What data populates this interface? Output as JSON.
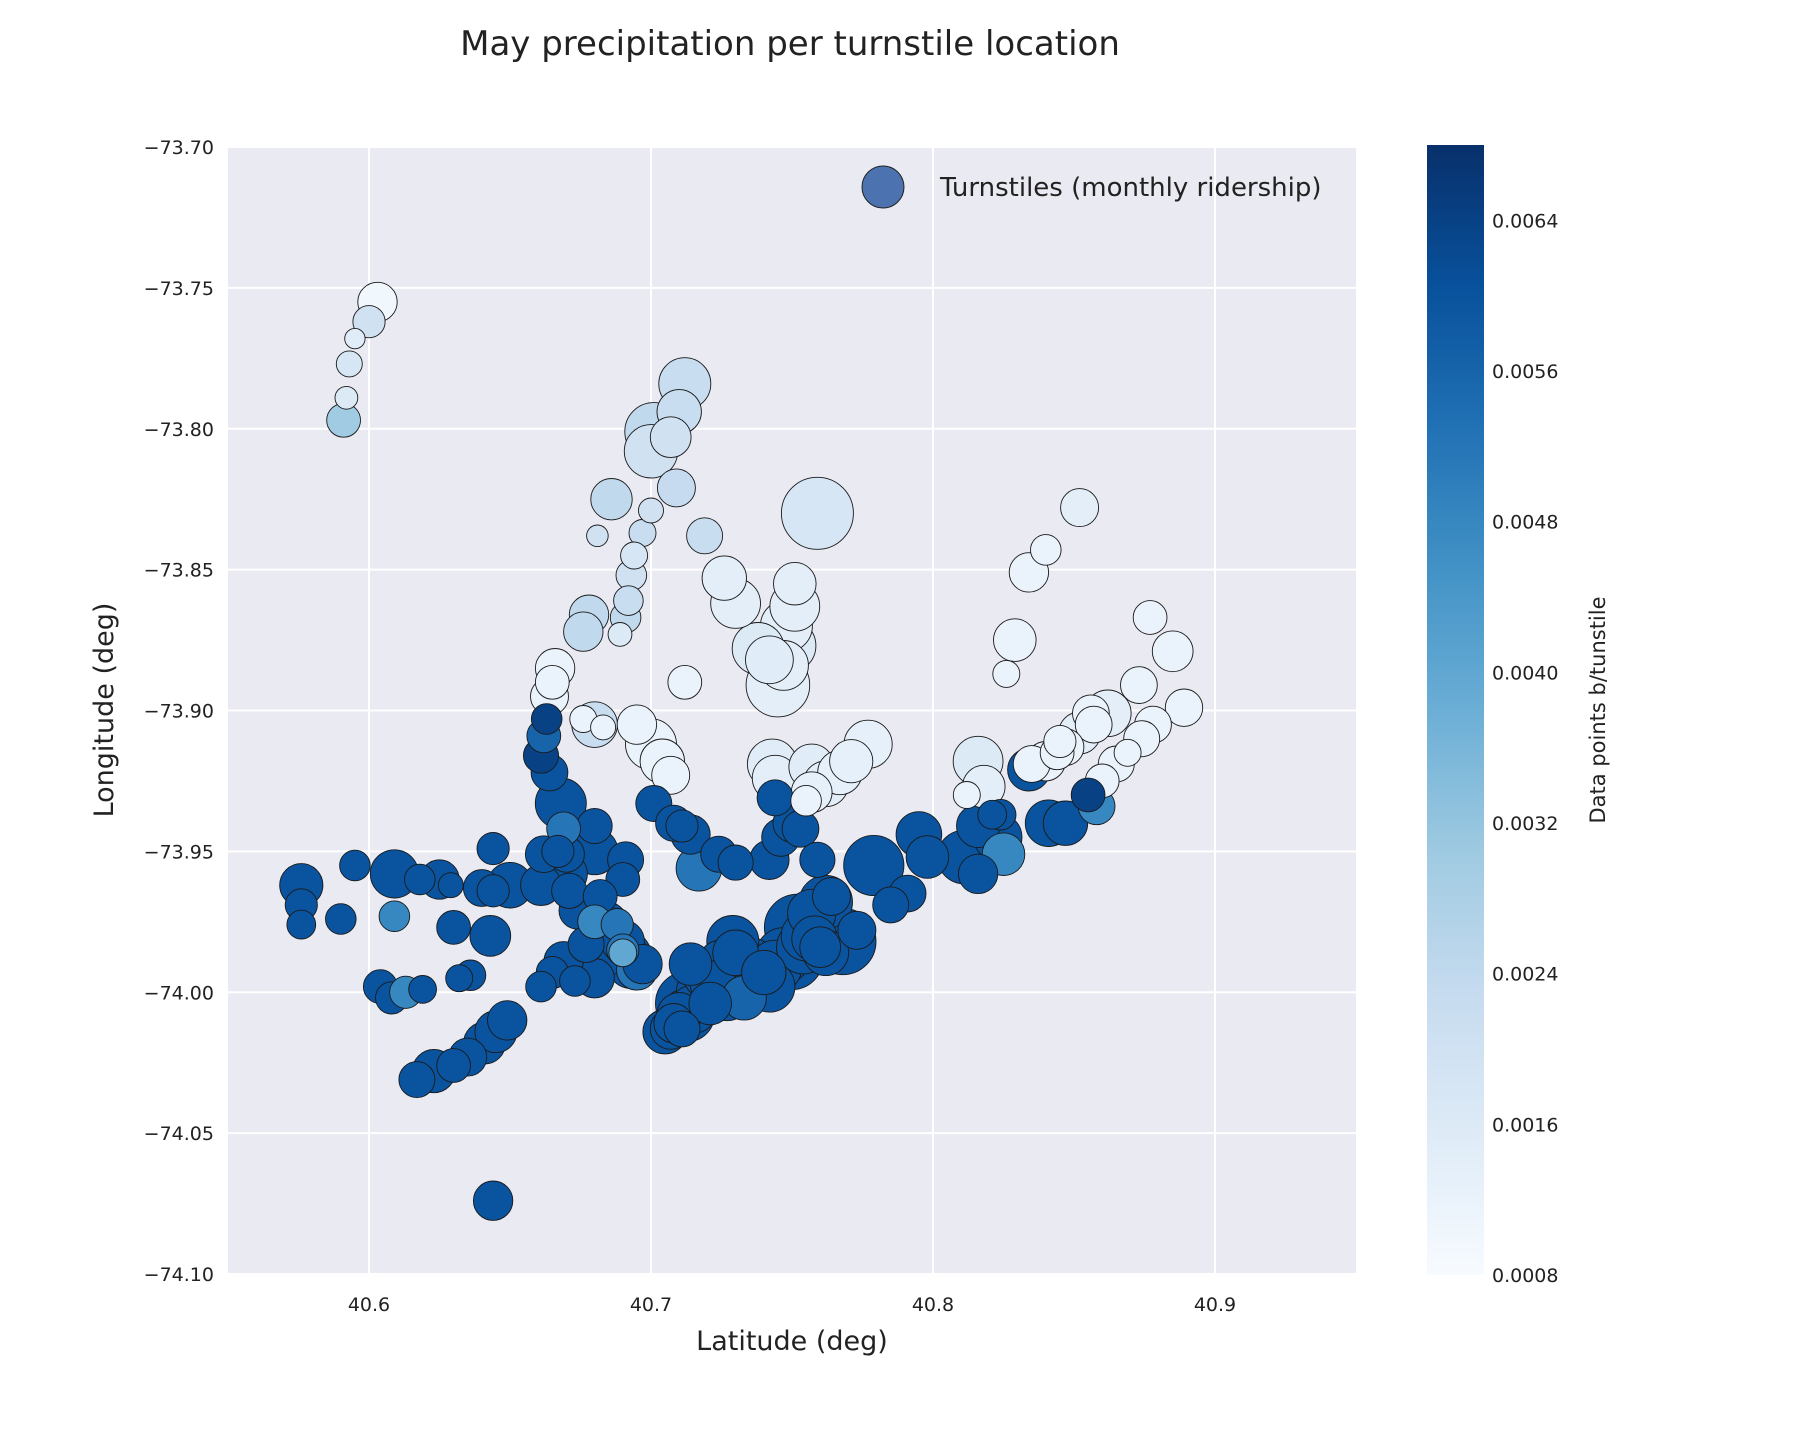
{
  "chart_data": {
    "type": "scatter",
    "title": "May precipitation per turnstile location",
    "xlabel": "Latitude (deg)",
    "ylabel": "Longitude (deg)",
    "xlim": [
      40.55,
      40.95
    ],
    "ylim": [
      -74.1,
      -73.7
    ],
    "xticks": [
      40.6,
      40.7,
      40.8,
      40.9
    ],
    "xtick_labels": [
      "40.6",
      "40.7",
      "40.8",
      "40.9"
    ],
    "yticks": [
      -73.7,
      -73.75,
      -73.8,
      -73.85,
      -73.9,
      -73.95,
      -74.0,
      -74.05,
      -74.1
    ],
    "ytick_labels": [
      "−73.70",
      "−73.75",
      "−73.80",
      "−73.85",
      "−73.90",
      "−73.95",
      "−74.00",
      "−74.05",
      "−74.10"
    ],
    "grid": true,
    "legend": {
      "label": "Turnstiles (monthly ridership)",
      "placement": "top-right",
      "swatch_color": "#4c72b0"
    },
    "colorbar": {
      "label": "Data points b/tunstile",
      "min": 0.0008,
      "max": 0.0068,
      "ticks": [
        0.0008,
        0.0016,
        0.0024,
        0.0032,
        0.004,
        0.0048,
        0.0056,
        0.0064
      ],
      "tick_labels": [
        "0.0008",
        "0.0016",
        "0.0024",
        "0.0032",
        "0.0040",
        "0.0048",
        "0.0056",
        "0.0064"
      ],
      "colormap": "Blues",
      "colormap_stops": [
        "#f7fbff",
        "#deebf7",
        "#c6dbef",
        "#9ecae1",
        "#6baed6",
        "#4292c6",
        "#2171b5",
        "#08519c",
        "#08306b"
      ]
    },
    "points_columns": [
      "latitude",
      "longitude",
      "relative_ridership",
      "value"
    ],
    "points": [
      [
        40.603,
        -73.755,
        0.3,
        0.001
      ],
      [
        40.6,
        -73.762,
        0.2,
        0.002
      ],
      [
        40.595,
        -73.768,
        0.08,
        0.0015
      ],
      [
        40.593,
        -73.777,
        0.13,
        0.0018
      ],
      [
        40.592,
        -73.789,
        0.1,
        0.0016
      ],
      [
        40.591,
        -73.797,
        0.22,
        0.003
      ],
      [
        40.712,
        -73.784,
        0.52,
        0.0022
      ],
      [
        40.701,
        -73.801,
        0.65,
        0.0024
      ],
      [
        40.7,
        -73.808,
        0.55,
        0.002
      ],
      [
        40.71,
        -73.794,
        0.38,
        0.0022
      ],
      [
        40.707,
        -73.803,
        0.32,
        0.002
      ],
      [
        40.709,
        -73.821,
        0.28,
        0.0023
      ],
      [
        40.686,
        -73.825,
        0.33,
        0.0024
      ],
      [
        40.7,
        -73.829,
        0.12,
        0.002
      ],
      [
        40.697,
        -73.837,
        0.14,
        0.0022
      ],
      [
        40.681,
        -73.838,
        0.09,
        0.002
      ],
      [
        40.719,
        -73.838,
        0.25,
        0.0022
      ],
      [
        40.759,
        -73.83,
        1.0,
        0.0018
      ],
      [
        40.694,
        -73.845,
        0.14,
        0.0018
      ],
      [
        40.693,
        -73.852,
        0.18,
        0.002
      ],
      [
        40.692,
        -73.861,
        0.17,
        0.0022
      ],
      [
        40.691,
        -73.867,
        0.18,
        0.0024
      ],
      [
        40.689,
        -73.873,
        0.11,
        0.0016
      ],
      [
        40.678,
        -73.866,
        0.3,
        0.0024
      ],
      [
        40.676,
        -73.872,
        0.3,
        0.0024
      ],
      [
        40.726,
        -73.853,
        0.38,
        0.0014
      ],
      [
        40.73,
        -73.862,
        0.48,
        0.0014
      ],
      [
        40.751,
        -73.855,
        0.35,
        0.0014
      ],
      [
        40.751,
        -73.863,
        0.48,
        0.0014
      ],
      [
        40.748,
        -73.87,
        0.52,
        0.0014
      ],
      [
        40.749,
        -73.877,
        0.55,
        0.0016
      ],
      [
        40.738,
        -73.878,
        0.52,
        0.0016
      ],
      [
        40.742,
        -73.882,
        0.44,
        0.0015
      ],
      [
        40.747,
        -73.884,
        0.48,
        0.0014
      ],
      [
        40.745,
        -73.891,
        0.78,
        0.0014
      ],
      [
        40.712,
        -73.89,
        0.22,
        0.0012
      ],
      [
        40.666,
        -73.885,
        0.3,
        0.0012
      ],
      [
        40.665,
        -73.89,
        0.22,
        0.0012
      ],
      [
        40.664,
        -73.895,
        0.28,
        0.0012
      ],
      [
        40.68,
        -73.905,
        0.4,
        0.0022
      ],
      [
        40.676,
        -73.903,
        0.14,
        0.0012
      ],
      [
        40.683,
        -73.906,
        0.12,
        0.0012
      ],
      [
        40.695,
        -73.905,
        0.3,
        0.0012
      ],
      [
        40.7,
        -73.912,
        0.5,
        0.0012
      ],
      [
        40.704,
        -73.918,
        0.38,
        0.0012
      ],
      [
        40.707,
        -73.923,
        0.28,
        0.0012
      ],
      [
        40.743,
        -73.919,
        0.48,
        0.0015
      ],
      [
        40.744,
        -73.924,
        0.4,
        0.0014
      ],
      [
        40.755,
        -73.932,
        0.18,
        0.0012
      ],
      [
        40.757,
        -73.929,
        0.32,
        0.0013
      ],
      [
        40.757,
        -73.92,
        0.4,
        0.0015
      ],
      [
        40.762,
        -73.926,
        0.4,
        0.0014
      ],
      [
        40.767,
        -73.922,
        0.38,
        0.0013
      ],
      [
        40.771,
        -73.918,
        0.36,
        0.0013
      ],
      [
        40.777,
        -73.912,
        0.45,
        0.0013
      ],
      [
        40.816,
        -73.918,
        0.48,
        0.0016
      ],
      [
        40.818,
        -73.927,
        0.35,
        0.0014
      ],
      [
        40.812,
        -73.93,
        0.14,
        0.0012
      ],
      [
        40.826,
        -73.887,
        0.14,
        0.0012
      ],
      [
        40.829,
        -73.875,
        0.35,
        0.0012
      ],
      [
        40.834,
        -73.851,
        0.3,
        0.0012
      ],
      [
        40.84,
        -73.843,
        0.18,
        0.0012
      ],
      [
        40.852,
        -73.828,
        0.28,
        0.0014
      ],
      [
        40.877,
        -73.867,
        0.22,
        0.0012
      ],
      [
        40.885,
        -73.879,
        0.32,
        0.0012
      ],
      [
        40.873,
        -73.891,
        0.26,
        0.0012
      ],
      [
        40.889,
        -73.899,
        0.27,
        0.0012
      ],
      [
        40.878,
        -73.905,
        0.26,
        0.0012
      ],
      [
        40.874,
        -73.91,
        0.25,
        0.0012
      ],
      [
        40.869,
        -73.915,
        0.14,
        0.0012
      ],
      [
        40.865,
        -73.919,
        0.25,
        0.0012
      ],
      [
        40.86,
        -73.925,
        0.22,
        0.0012
      ],
      [
        40.862,
        -73.901,
        0.42,
        0.0014
      ],
      [
        40.856,
        -73.901,
        0.26,
        0.0012
      ],
      [
        40.857,
        -73.905,
        0.26,
        0.0012
      ],
      [
        40.852,
        -73.908,
        0.34,
        0.0014
      ],
      [
        40.847,
        -73.913,
        0.26,
        0.0012
      ],
      [
        40.845,
        -73.911,
        0.2,
        0.0012
      ],
      [
        40.844,
        -73.915,
        0.22,
        0.0012
      ],
      [
        40.84,
        -73.918,
        0.3,
        0.0012
      ],
      [
        40.835,
        -73.919,
        0.26,
        0.0012
      ],
      [
        40.855,
        -73.93,
        0.22,
        0.0064
      ],
      [
        40.858,
        -73.934,
        0.26,
        0.0048
      ],
      [
        40.834,
        -73.921,
        0.35,
        0.006
      ],
      [
        40.841,
        -73.94,
        0.42,
        0.006
      ],
      [
        40.847,
        -73.94,
        0.38,
        0.006
      ],
      [
        40.821,
        -73.937,
        0.16,
        0.006
      ],
      [
        40.824,
        -73.937,
        0.18,
        0.006
      ],
      [
        40.816,
        -73.941,
        0.36,
        0.006
      ],
      [
        40.823,
        -73.945,
        0.45,
        0.006
      ],
      [
        40.825,
        -73.951,
        0.35,
        0.0048
      ],
      [
        40.811,
        -73.952,
        0.55,
        0.006
      ],
      [
        40.816,
        -73.958,
        0.3,
        0.006
      ],
      [
        40.795,
        -73.944,
        0.4,
        0.006
      ],
      [
        40.798,
        -73.952,
        0.35,
        0.006
      ],
      [
        40.779,
        -73.955,
        0.7,
        0.006
      ],
      [
        40.791,
        -73.965,
        0.26,
        0.006
      ],
      [
        40.785,
        -73.969,
        0.25,
        0.006
      ],
      [
        40.663,
        -73.903,
        0.18,
        0.0064
      ],
      [
        40.662,
        -73.909,
        0.22,
        0.0056
      ],
      [
        40.661,
        -73.916,
        0.24,
        0.0064
      ],
      [
        40.664,
        -73.922,
        0.26,
        0.006
      ],
      [
        40.668,
        -73.933,
        0.5,
        0.006
      ],
      [
        40.669,
        -73.942,
        0.22,
        0.0052
      ],
      [
        40.667,
        -73.95,
        0.2,
        0.006
      ],
      [
        40.67,
        -73.951,
        0.25,
        0.006
      ],
      [
        40.67,
        -73.958,
        0.34,
        0.006
      ],
      [
        40.671,
        -73.964,
        0.24,
        0.006
      ],
      [
        40.674,
        -73.971,
        0.27,
        0.006
      ],
      [
        40.662,
        -73.951,
        0.26,
        0.006
      ],
      [
        40.661,
        -73.962,
        0.32,
        0.006
      ],
      [
        40.68,
        -73.941,
        0.24,
        0.006
      ],
      [
        40.68,
        -73.95,
        0.42,
        0.006
      ],
      [
        40.691,
        -73.953,
        0.25,
        0.006
      ],
      [
        40.69,
        -73.96,
        0.22,
        0.006
      ],
      [
        40.682,
        -73.966,
        0.22,
        0.006
      ],
      [
        40.683,
        -73.977,
        0.55,
        0.006
      ],
      [
        40.685,
        -73.981,
        0.52,
        0.006
      ],
      [
        40.688,
        -73.985,
        0.45,
        0.006
      ],
      [
        40.69,
        -73.982,
        0.36,
        0.006
      ],
      [
        40.691,
        -73.987,
        0.5,
        0.006
      ],
      [
        40.693,
        -73.99,
        0.46,
        0.006
      ],
      [
        40.697,
        -73.99,
        0.3,
        0.006
      ],
      [
        40.695,
        -73.992,
        0.32,
        0.0052
      ],
      [
        40.68,
        -73.975,
        0.22,
        0.0048
      ],
      [
        40.688,
        -73.976,
        0.2,
        0.0052
      ],
      [
        40.69,
        -73.985,
        0.2,
        0.0052
      ],
      [
        40.69,
        -73.986,
        0.15,
        0.004
      ],
      [
        40.677,
        -73.983,
        0.25,
        0.006
      ],
      [
        40.68,
        -73.995,
        0.3,
        0.006
      ],
      [
        40.669,
        -73.989,
        0.3,
        0.006
      ],
      [
        40.665,
        -73.993,
        0.2,
        0.006
      ],
      [
        40.673,
        -73.996,
        0.18,
        0.006
      ],
      [
        40.661,
        -73.998,
        0.18,
        0.006
      ],
      [
        40.701,
        -73.933,
        0.25,
        0.006
      ],
      [
        40.708,
        -73.94,
        0.25,
        0.006
      ],
      [
        40.711,
        -73.941,
        0.2,
        0.006
      ],
      [
        40.714,
        -73.944,
        0.3,
        0.006
      ],
      [
        40.717,
        -73.956,
        0.4,
        0.0052
      ],
      [
        40.724,
        -73.951,
        0.25,
        0.006
      ],
      [
        40.73,
        -73.954,
        0.24,
        0.006
      ],
      [
        40.744,
        -73.931,
        0.25,
        0.006
      ],
      [
        40.746,
        -73.945,
        0.28,
        0.006
      ],
      [
        40.75,
        -73.94,
        0.28,
        0.006
      ],
      [
        40.742,
        -73.953,
        0.3,
        0.006
      ],
      [
        40.753,
        -73.942,
        0.26,
        0.006
      ],
      [
        40.759,
        -73.953,
        0.24,
        0.006
      ],
      [
        40.576,
        -73.962,
        0.36,
        0.006
      ],
      [
        40.576,
        -73.969,
        0.2,
        0.006
      ],
      [
        40.576,
        -73.976,
        0.16,
        0.006
      ],
      [
        40.59,
        -73.974,
        0.18,
        0.006
      ],
      [
        40.595,
        -73.955,
        0.18,
        0.006
      ],
      [
        40.609,
        -73.958,
        0.45,
        0.006
      ],
      [
        40.609,
        -73.973,
        0.18,
        0.0048
      ],
      [
        40.618,
        -73.96,
        0.18,
        0.006
      ],
      [
        40.625,
        -73.96,
        0.3,
        0.006
      ],
      [
        40.629,
        -73.962,
        0.12,
        0.006
      ],
      [
        40.63,
        -73.977,
        0.22,
        0.006
      ],
      [
        40.644,
        -73.949,
        0.2,
        0.006
      ],
      [
        40.64,
        -73.963,
        0.26,
        0.006
      ],
      [
        40.644,
        -73.964,
        0.2,
        0.006
      ],
      [
        40.65,
        -73.962,
        0.4,
        0.006
      ],
      [
        40.643,
        -73.98,
        0.32,
        0.006
      ],
      [
        40.604,
        -73.998,
        0.22,
        0.006
      ],
      [
        40.608,
        -74.002,
        0.2,
        0.006
      ],
      [
        40.613,
        -74.0,
        0.2,
        0.0048
      ],
      [
        40.619,
        -73.999,
        0.15,
        0.006
      ],
      [
        40.632,
        -73.995,
        0.14,
        0.006
      ],
      [
        40.636,
        -73.994,
        0.18,
        0.006
      ],
      [
        40.617,
        -74.031,
        0.25,
        0.006
      ],
      [
        40.623,
        -74.028,
        0.36,
        0.006
      ],
      [
        40.63,
        -74.026,
        0.22,
        0.006
      ],
      [
        40.635,
        -74.023,
        0.28,
        0.006
      ],
      [
        40.641,
        -74.018,
        0.34,
        0.006
      ],
      [
        40.645,
        -74.014,
        0.34,
        0.006
      ],
      [
        40.649,
        -74.01,
        0.3,
        0.006
      ],
      [
        40.644,
        -74.074,
        0.3,
        0.006
      ],
      [
        40.705,
        -74.014,
        0.38,
        0.006
      ],
      [
        40.707,
        -74.013,
        0.32,
        0.006
      ],
      [
        40.708,
        -74.011,
        0.3,
        0.006
      ],
      [
        40.71,
        -74.008,
        0.38,
        0.006
      ],
      [
        40.711,
        -74.013,
        0.25,
        0.006
      ],
      [
        40.713,
        -74.008,
        0.55,
        0.006
      ],
      [
        40.715,
        -74.006,
        0.45,
        0.006
      ],
      [
        40.713,
        -74.004,
        0.8,
        0.006
      ],
      [
        40.718,
        -74.0,
        0.5,
        0.006
      ],
      [
        40.714,
        -73.99,
        0.35,
        0.006
      ],
      [
        40.72,
        -73.994,
        0.45,
        0.006
      ],
      [
        40.725,
        -73.99,
        0.45,
        0.006
      ],
      [
        40.721,
        -74.004,
        0.35,
        0.006
      ],
      [
        40.727,
        -74.002,
        0.4,
        0.006
      ],
      [
        40.722,
        -73.997,
        0.4,
        0.006
      ],
      [
        40.729,
        -73.982,
        0.52,
        0.006
      ],
      [
        40.73,
        -73.986,
        0.4,
        0.006
      ],
      [
        40.733,
        -74.002,
        0.38,
        0.0056
      ],
      [
        40.735,
        -73.99,
        0.55,
        0.006
      ],
      [
        40.737,
        -73.997,
        0.55,
        0.006
      ],
      [
        40.74,
        -73.993,
        0.38,
        0.006
      ],
      [
        40.742,
        -73.998,
        0.5,
        0.006
      ],
      [
        40.744,
        -73.991,
        0.55,
        0.006
      ],
      [
        40.747,
        -73.987,
        0.6,
        0.006
      ],
      [
        40.75,
        -73.988,
        0.75,
        0.006
      ],
      [
        40.752,
        -73.977,
        0.85,
        0.006
      ],
      [
        40.754,
        -73.984,
        0.55,
        0.006
      ],
      [
        40.755,
        -73.98,
        0.48,
        0.006
      ],
      [
        40.757,
        -73.972,
        0.45,
        0.006
      ],
      [
        40.758,
        -73.981,
        0.4,
        0.006
      ],
      [
        40.76,
        -73.984,
        0.32,
        0.006
      ],
      [
        40.762,
        -73.968,
        0.55,
        0.006
      ],
      [
        40.764,
        -73.966,
        0.28,
        0.006
      ],
      [
        40.762,
        -73.986,
        0.4,
        0.006
      ],
      [
        40.768,
        -73.982,
        0.85,
        0.006
      ],
      [
        40.773,
        -73.978,
        0.28,
        0.006
      ]
    ]
  }
}
